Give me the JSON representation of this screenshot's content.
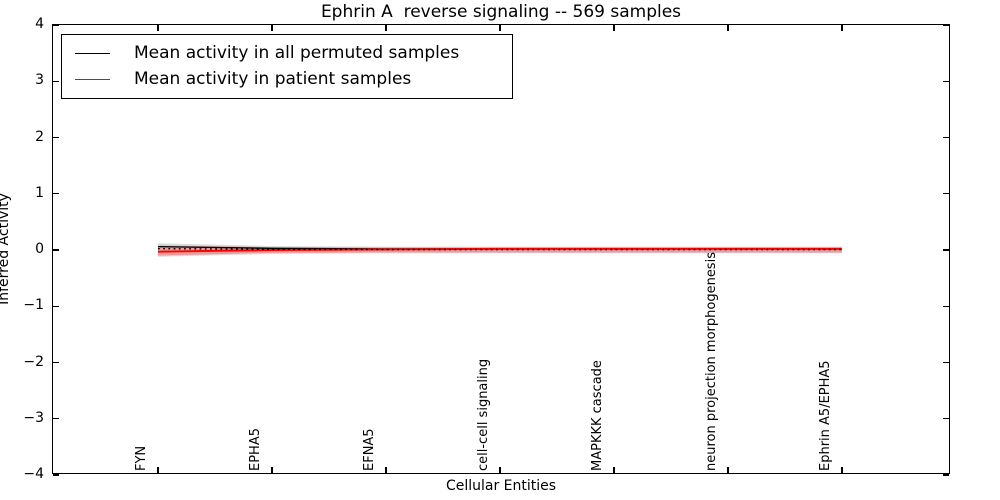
{
  "chart_data": {
    "type": "line",
    "title": "Ephrin A  reverse signaling -- 569 samples",
    "xlabel": "Cellular Entities",
    "ylabel": "Inferred Activity",
    "ylim": [
      -4,
      4
    ],
    "grid": false,
    "legend_position": "upper left",
    "yticks": [
      4,
      3,
      2,
      1,
      0,
      -1,
      -2,
      -3,
      -4
    ],
    "ytick_labels": [
      "4",
      "3",
      "2",
      "1",
      "0",
      "−1",
      "−2",
      "−3",
      "−4"
    ],
    "categories": [
      "FYN",
      "EPHA5",
      "EFNA5",
      "cell-cell signaling",
      "MAPKKK cascade",
      "neuron projection morphogenesis",
      "Ephrin A5/EPHA5"
    ],
    "series": [
      {
        "name": "Mean activity in all permuted samples",
        "color": "#000000",
        "values": [
          0.06,
          0.03,
          0.02,
          0.02,
          0.02,
          0.02,
          0.02
        ]
      },
      {
        "name": "Mean activity in patient samples",
        "color": "#ff0000",
        "values": [
          -0.03,
          0.0,
          0.01,
          0.02,
          0.02,
          0.02,
          0.02
        ]
      }
    ],
    "bands": [
      {
        "name": "permuted-std-band",
        "color": "#000000",
        "opacity": 0.14,
        "upper": [
          0.12,
          0.07,
          0.06,
          0.06,
          0.06,
          0.06,
          0.06
        ],
        "lower": [
          -0.12,
          -0.07,
          -0.06,
          -0.06,
          -0.06,
          -0.06,
          -0.06
        ]
      },
      {
        "name": "patient-std-band",
        "color": "#ff0000",
        "opacity": 0.28,
        "upper": [
          0.08,
          0.05,
          0.045,
          0.045,
          0.045,
          0.045,
          0.045
        ],
        "lower": [
          -0.1,
          -0.05,
          -0.045,
          -0.045,
          -0.045,
          -0.045,
          -0.045
        ]
      }
    ]
  }
}
